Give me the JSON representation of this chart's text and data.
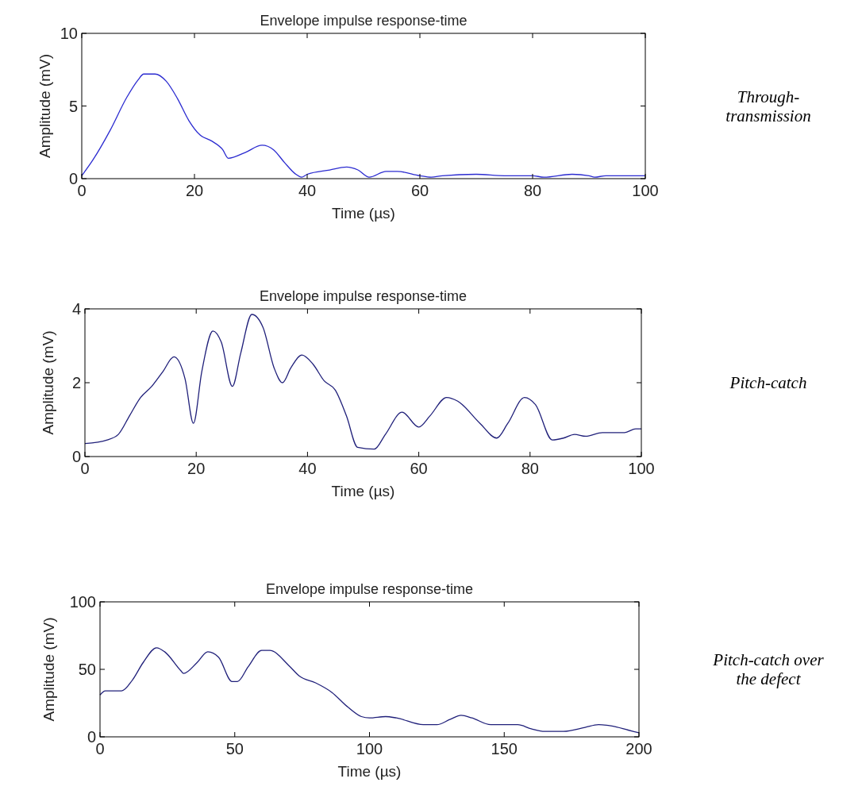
{
  "chart_data": [
    {
      "type": "line",
      "title": "Envelope impulse response-time",
      "xlabel": "Time (µs)",
      "ylabel": "Amplitude (mV)",
      "annotations": [
        "Through-transmission"
      ],
      "xlim": [
        0,
        100
      ],
      "xticks": [
        0,
        20,
        40,
        60,
        80,
        100
      ],
      "ylim": [
        0,
        10
      ],
      "yticks": [
        0,
        5,
        10
      ],
      "marker": "none",
      "line_style": "solid",
      "series": [
        {
          "color": "#2b2bd0",
          "x": [
            0,
            2,
            5,
            8,
            10,
            11,
            13,
            15,
            17,
            19,
            21,
            23,
            25,
            26,
            29,
            32,
            34,
            36,
            38,
            39,
            40,
            44,
            47,
            49,
            51,
            54,
            56,
            60,
            62,
            64,
            70,
            75,
            80,
            82,
            87,
            90,
            91,
            93,
            100
          ],
          "values": [
            0.2,
            1.3,
            3.3,
            5.6,
            6.8,
            7.2,
            7.2,
            6.7,
            5.5,
            4,
            3,
            2.6,
            2,
            1.4,
            1.8,
            2.3,
            2,
            1.1,
            0.3,
            0.1,
            0.3,
            0.6,
            0.8,
            0.6,
            0.1,
            0.5,
            0.5,
            0.2,
            0.1,
            0.2,
            0.3,
            0.2,
            0.2,
            0.1,
            0.3,
            0.2,
            0.1,
            0.2,
            0.2
          ]
        }
      ]
    },
    {
      "type": "line",
      "title": "Envelope impulse response-time",
      "xlabel": "Time (µs)",
      "ylabel": "Amplitude (mV)",
      "annotations": [
        "Pitch-catch"
      ],
      "xlim": [
        0,
        100
      ],
      "xticks": [
        0,
        20,
        40,
        60,
        80,
        100
      ],
      "ylim": [
        0,
        4
      ],
      "yticks": [
        0,
        2,
        4
      ],
      "marker": "none",
      "line_style": "solid",
      "series": [
        {
          "color": "#20207a",
          "x": [
            0,
            4,
            6,
            8,
            10,
            12,
            14,
            16,
            18,
            19.5,
            21,
            23,
            24.5,
            26.5,
            28,
            30,
            32,
            34,
            35.5,
            37,
            39,
            41,
            43,
            45,
            47,
            49,
            52,
            54,
            57,
            60,
            62,
            65,
            67,
            71,
            74,
            76,
            79,
            81,
            84,
            86,
            88,
            90,
            93,
            97,
            99,
            100
          ],
          "values": [
            0.35,
            0.45,
            0.6,
            1.1,
            1.6,
            1.9,
            2.3,
            2.7,
            2.1,
            0.9,
            2.3,
            3.4,
            3.1,
            1.9,
            2.8,
            3.85,
            3.5,
            2.4,
            2,
            2.4,
            2.75,
            2.5,
            2.05,
            1.8,
            1.1,
            0.25,
            0.2,
            0.6,
            1.2,
            0.8,
            1.1,
            1.6,
            1.5,
            0.9,
            0.5,
            0.9,
            1.6,
            1.4,
            0.45,
            0.5,
            0.6,
            0.55,
            0.65,
            0.65,
            0.75,
            0.75
          ]
        }
      ]
    },
    {
      "type": "line",
      "title": "Envelope impulse response-time",
      "xlabel": "Time (µs)",
      "ylabel": "Amplitude (mV)",
      "annotations": [
        "Pitch-catch over the defect"
      ],
      "xlim": [
        0,
        200
      ],
      "xticks": [
        0,
        50,
        100,
        150,
        200
      ],
      "ylim": [
        0,
        100
      ],
      "yticks": [
        0,
        50,
        100
      ],
      "marker": "none",
      "line_style": "solid",
      "series": [
        {
          "color": "#20207a",
          "x": [
            0,
            2,
            8,
            12,
            16,
            21,
            24,
            30,
            31,
            36,
            40,
            44,
            49,
            51,
            55,
            60,
            63,
            70,
            74,
            80,
            86,
            92,
            97,
            100,
            106,
            110,
            120,
            125,
            130,
            134,
            138,
            145,
            155,
            160,
            165,
            172,
            180,
            185,
            190,
            196,
            200
          ],
          "values": [
            31,
            34,
            34,
            42,
            55,
            66,
            63,
            49,
            47,
            55,
            63,
            59,
            41,
            41,
            52,
            64,
            64,
            53,
            45,
            40,
            33,
            22,
            15,
            14,
            15,
            14,
            9,
            9,
            13,
            16,
            14,
            9,
            9,
            6,
            4,
            4,
            7,
            9,
            8,
            5,
            3
          ]
        }
      ]
    }
  ]
}
